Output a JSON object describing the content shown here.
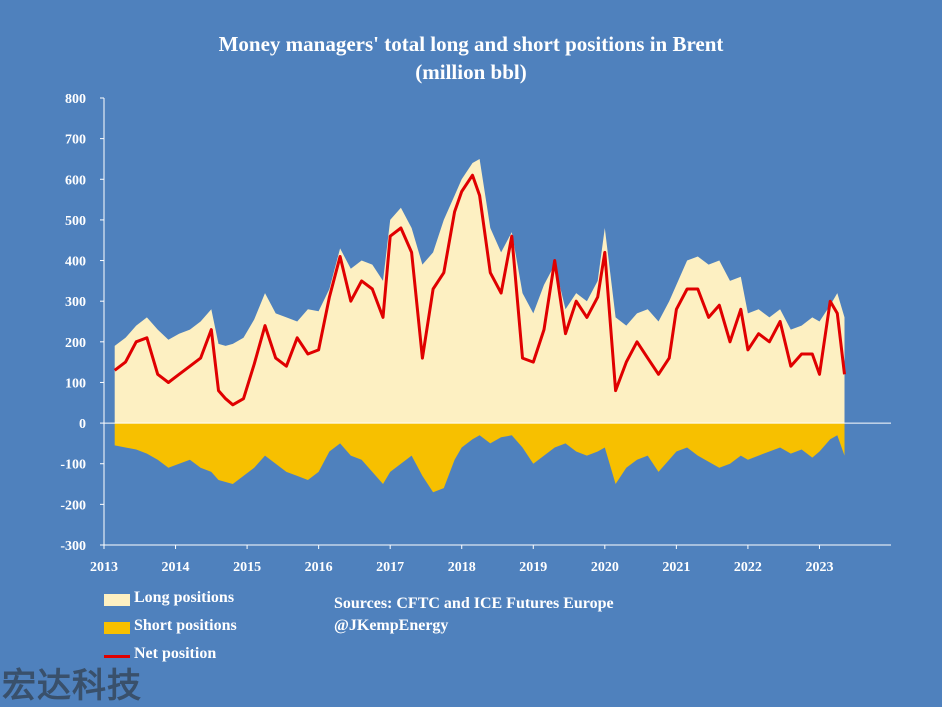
{
  "title_line1": "Money managers' total long and short positions in Brent",
  "title_line2": "(million bbl)",
  "legend": {
    "long_label": "Long positions",
    "short_label": "Short positions",
    "net_label": "Net position"
  },
  "sources": {
    "line1": "Sources: CFTC and ICE Futures Europe",
    "line2": "@JKempEnergy"
  },
  "watermark": "宏达科技",
  "colors": {
    "background": "#4f81bd",
    "long": "#fdf0c2",
    "short": "#f7c000",
    "net": "#e00000",
    "axis": "#ffffff"
  },
  "chart_data": {
    "type": "area",
    "title": "Money managers' total long and short positions in Brent",
    "subtitle": "(million bbl)",
    "ylim": [
      -300,
      800
    ],
    "yticks": [
      800,
      700,
      600,
      500,
      400,
      300,
      200,
      100,
      0,
      -100,
      -200,
      -300
    ],
    "xlim": [
      2013,
      2024
    ],
    "xticks": [
      2013,
      2014,
      2015,
      2016,
      2017,
      2018,
      2019,
      2020,
      2021,
      2022,
      2023
    ],
    "grid": false,
    "legend_position": "bottom-left",
    "x": [
      2013.15,
      2013.3,
      2013.45,
      2013.6,
      2013.75,
      2013.9,
      2014.05,
      2014.2,
      2014.35,
      2014.5,
      2014.6,
      2014.7,
      2014.8,
      2014.95,
      2015.1,
      2015.25,
      2015.4,
      2015.55,
      2015.7,
      2015.85,
      2016.0,
      2016.15,
      2016.3,
      2016.45,
      2016.6,
      2016.75,
      2016.9,
      2017.0,
      2017.15,
      2017.3,
      2017.45,
      2017.6,
      2017.75,
      2017.9,
      2018.0,
      2018.15,
      2018.25,
      2018.4,
      2018.55,
      2018.7,
      2018.85,
      2019.0,
      2019.15,
      2019.3,
      2019.45,
      2019.6,
      2019.75,
      2019.9,
      2020.0,
      2020.15,
      2020.3,
      2020.45,
      2020.6,
      2020.75,
      2020.9,
      2021.0,
      2021.15,
      2021.3,
      2021.45,
      2021.6,
      2021.75,
      2021.9,
      2022.0,
      2022.15,
      2022.3,
      2022.45,
      2022.6,
      2022.75,
      2022.9,
      2023.0,
      2023.15,
      2023.25,
      2023.35
    ],
    "series": [
      {
        "name": "Long positions",
        "values": [
          190,
          210,
          240,
          260,
          230,
          205,
          220,
          230,
          250,
          280,
          195,
          190,
          195,
          210,
          255,
          320,
          270,
          260,
          250,
          280,
          275,
          330,
          430,
          380,
          400,
          390,
          350,
          500,
          530,
          480,
          390,
          420,
          500,
          560,
          600,
          640,
          650,
          480,
          420,
          470,
          320,
          270,
          340,
          390,
          280,
          320,
          300,
          350,
          480,
          260,
          240,
          270,
          280,
          250,
          300,
          340,
          400,
          410,
          390,
          400,
          350,
          360,
          270,
          280,
          260,
          280,
          230,
          240,
          260,
          250,
          290,
          320,
          260
        ],
        "color": "#fdf0c2"
      },
      {
        "name": "Short positions",
        "values": [
          -55,
          -60,
          -65,
          -75,
          -90,
          -110,
          -100,
          -90,
          -110,
          -120,
          -140,
          -145,
          -150,
          -130,
          -110,
          -80,
          -100,
          -120,
          -130,
          -140,
          -120,
          -70,
          -50,
          -80,
          -90,
          -120,
          -150,
          -120,
          -100,
          -80,
          -130,
          -170,
          -160,
          -90,
          -60,
          -40,
          -30,
          -50,
          -35,
          -30,
          -60,
          -100,
          -80,
          -60,
          -50,
          -70,
          -80,
          -70,
          -60,
          -150,
          -110,
          -90,
          -80,
          -120,
          -90,
          -70,
          -60,
          -80,
          -95,
          -110,
          -100,
          -80,
          -90,
          -80,
          -70,
          -60,
          -75,
          -65,
          -85,
          -70,
          -40,
          -30,
          -80
        ],
        "color": "#f7c000"
      },
      {
        "name": "Net position",
        "values": [
          130,
          150,
          200,
          210,
          120,
          100,
          120,
          140,
          160,
          230,
          80,
          60,
          45,
          60,
          145,
          240,
          160,
          140,
          210,
          170,
          180,
          310,
          410,
          300,
          350,
          330,
          260,
          460,
          480,
          420,
          160,
          330,
          370,
          520,
          570,
          610,
          560,
          370,
          320,
          460,
          160,
          150,
          230,
          400,
          220,
          300,
          260,
          310,
          420,
          80,
          150,
          200,
          160,
          120,
          160,
          280,
          330,
          330,
          260,
          290,
          200,
          280,
          180,
          220,
          200,
          250,
          140,
          170,
          170,
          120,
          300,
          270,
          120
        ],
        "color": "#e00000"
      }
    ]
  }
}
